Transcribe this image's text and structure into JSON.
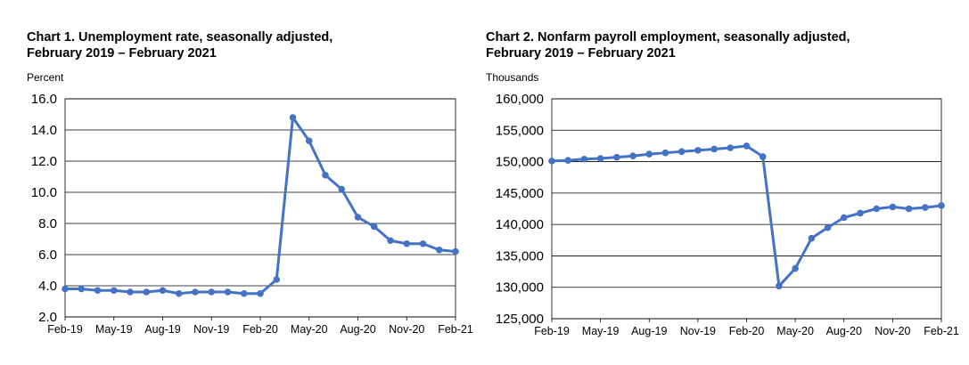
{
  "series_color": "#4472C4",
  "chart_data": [
    {
      "type": "line",
      "title_line1": "Chart 1. Unemployment rate, seasonally adjusted,",
      "title_line2": "February 2019 – February 2021",
      "ylabel": "Percent",
      "ylim": [
        2.0,
        16.0
      ],
      "yticks": [
        "2.0",
        "4.0",
        "6.0",
        "8.0",
        "10.0",
        "12.0",
        "14.0",
        "16.0"
      ],
      "ytick_values": [
        2,
        4,
        6,
        8,
        10,
        12,
        14,
        16
      ],
      "xtick_labels": [
        "Feb-19",
        "May-19",
        "Aug-19",
        "Nov-19",
        "Feb-20",
        "May-20",
        "Aug-20",
        "Nov-20",
        "Feb-21"
      ],
      "xtick_indices": [
        0,
        3,
        6,
        9,
        12,
        15,
        18,
        21,
        24
      ],
      "grid": true,
      "values": [
        3.8,
        3.8,
        3.7,
        3.7,
        3.6,
        3.6,
        3.7,
        3.5,
        3.6,
        3.6,
        3.6,
        3.5,
        3.5,
        4.4,
        14.8,
        13.3,
        11.1,
        10.2,
        8.4,
        7.8,
        6.9,
        6.7,
        6.7,
        6.3,
        6.2
      ]
    },
    {
      "type": "line",
      "title_line1": "Chart 2. Nonfarm payroll employment, seasonally adjusted,",
      "title_line2": "February 2019 – February 2021",
      "ylabel": "Thousands",
      "ylim": [
        125000,
        160000
      ],
      "yticks": [
        "125,000",
        "130,000",
        "135,000",
        "140,000",
        "145,000",
        "150,000",
        "155,000",
        "160,000"
      ],
      "ytick_values": [
        125000,
        130000,
        135000,
        140000,
        145000,
        150000,
        155000,
        160000
      ],
      "xtick_labels": [
        "Feb-19",
        "May-19",
        "Aug-19",
        "Nov-19",
        "Feb-20",
        "May-20",
        "Aug-20",
        "Nov-20",
        "Feb-21"
      ],
      "xtick_indices": [
        0,
        3,
        6,
        9,
        12,
        15,
        18,
        21,
        24
      ],
      "grid": true,
      "values": [
        150100,
        150200,
        150400,
        150500,
        150700,
        150900,
        151200,
        151400,
        151600,
        151800,
        152000,
        152200,
        152500,
        150800,
        130200,
        133000,
        137800,
        139500,
        141100,
        141800,
        142500,
        142800,
        142500,
        142700,
        143000
      ]
    }
  ]
}
